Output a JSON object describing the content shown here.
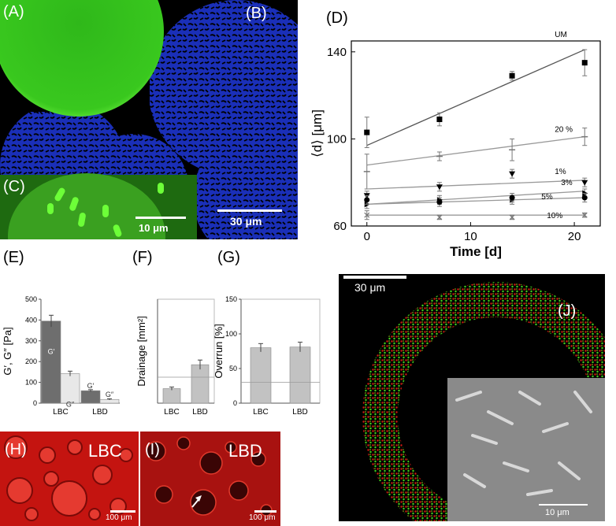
{
  "panels": {
    "A": {
      "label": "(A)"
    },
    "B": {
      "label": "(B)",
      "scalebar": "30 μm"
    },
    "C": {
      "label": "(C)",
      "scalebar": "10 μm"
    },
    "D": {
      "label": "(D)"
    },
    "E": {
      "label": "(E)"
    },
    "F": {
      "label": "(F)"
    },
    "G": {
      "label": "(G)"
    },
    "H": {
      "label": "(H)",
      "text": "LBC",
      "scalebar": "100 μm"
    },
    "I": {
      "label": "(I)",
      "text": "LBD",
      "scalebar": "100 μm"
    },
    "J": {
      "label": "(J)",
      "scalebar": "30 μm",
      "inset_scalebar": "10 μm"
    }
  },
  "colors": {
    "green": "#3fd21a",
    "blue": "#1a2fb8",
    "red": "#d11a12",
    "bar_dark": "#6e6e6e",
    "bar_light": "#dcdcdc",
    "bar_mid": "#c2c2c2"
  },
  "chart_data": [
    {
      "id": "D",
      "type": "scatter",
      "xlabel": "Time [d]",
      "ylabel": "⟨d⟩ [μm]",
      "xlim": [
        -1.5,
        22.5
      ],
      "ylim": [
        60,
        145
      ],
      "xticks": [
        "0",
        "10",
        "20"
      ],
      "yticks": [
        "60",
        "100",
        "140"
      ],
      "series": [
        {
          "name": "UM",
          "marker": "square",
          "x": [
            0,
            7,
            14,
            21
          ],
          "y": [
            103,
            109,
            129,
            135
          ],
          "err": [
            7,
            3,
            2,
            6
          ],
          "fit": [
            97,
            141
          ]
        },
        {
          "name": "20 %",
          "marker": "tick",
          "x": [
            0,
            7,
            14,
            21
          ],
          "y": [
            85,
            92,
            95,
            101
          ],
          "err": [
            8,
            2,
            5,
            4
          ],
          "fit": [
            88,
            101
          ]
        },
        {
          "name": "1%",
          "marker": "triangle-down",
          "x": [
            0,
            7,
            14,
            21
          ],
          "y": [
            74,
            78,
            84,
            80
          ],
          "err": [
            2,
            2,
            2,
            2
          ],
          "fit": [
            77,
            81
          ]
        },
        {
          "name": "3%",
          "marker": "triangle-right",
          "x": [
            0,
            7,
            14,
            21
          ],
          "y": [
            70,
            72,
            72,
            75
          ],
          "err": [
            2,
            2,
            2,
            2
          ],
          "fit": [
            70,
            76
          ]
        },
        {
          "name": "5%",
          "marker": "circle",
          "x": [
            0,
            7,
            14,
            21
          ],
          "y": [
            72,
            71,
            73,
            73
          ],
          "err": [
            2,
            2,
            2,
            2
          ],
          "fit": [
            70,
            73
          ]
        },
        {
          "name": "10%",
          "marker": "x",
          "x": [
            0,
            7,
            14,
            21
          ],
          "y": [
            65,
            64,
            64,
            65
          ],
          "err": [
            2,
            1,
            1,
            1
          ],
          "fit": [
            65,
            65
          ]
        }
      ]
    },
    {
      "id": "E",
      "type": "bar",
      "ylabel": "G′, G″ [Pa]",
      "categories": [
        "LBC",
        "LBD"
      ],
      "ylim": [
        0,
        500
      ],
      "yticks": [
        "0",
        "100",
        "200",
        "300",
        "400",
        "500"
      ],
      "series": [
        {
          "name": "G′",
          "values": [
            395,
            60
          ],
          "err": [
            28,
            5
          ]
        },
        {
          "name": "G″",
          "values": [
            142,
            18
          ],
          "err": [
            12,
            3
          ]
        }
      ]
    },
    {
      "id": "F",
      "type": "bar",
      "ylabel": "Drainage [mm²]",
      "categories": [
        "LBC",
        "LBD"
      ],
      "values": [
        1.4,
        3.7
      ],
      "err": [
        0.15,
        0.45
      ],
      "ylim": [
        0,
        10
      ]
    },
    {
      "id": "G",
      "type": "bar",
      "ylabel": "Overrun [%]",
      "categories": [
        "LBC",
        "LBD"
      ],
      "values": [
        80,
        81
      ],
      "err": [
        6,
        7
      ],
      "ylim": [
        0,
        150
      ],
      "yticks": [
        "0",
        "50",
        "100",
        "150"
      ]
    }
  ]
}
